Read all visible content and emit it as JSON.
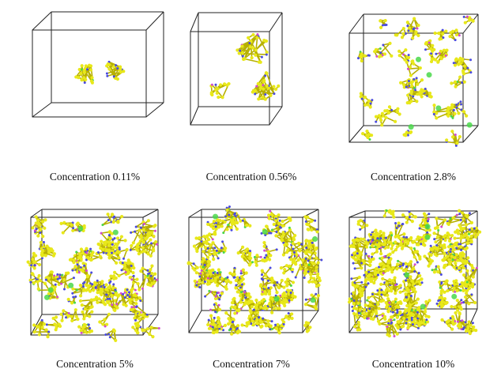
{
  "panels": [
    {
      "caption": "Concentration 0.11%",
      "concentration_percent": 0.11,
      "clusters": 2
    },
    {
      "caption": "Concentration 0.56%",
      "concentration_percent": 0.56,
      "clusters": 3
    },
    {
      "caption": "Concentration 2.8%",
      "concentration_percent": 2.8,
      "clusters": "network"
    },
    {
      "caption": "Concentration 5%",
      "concentration_percent": 5,
      "clusters": "dense"
    },
    {
      "caption": "Concentration 7%",
      "concentration_percent": 7,
      "clusters": "dense"
    },
    {
      "caption": "Concentration 10%",
      "concentration_percent": 10,
      "clusters": "dense"
    }
  ],
  "colors": {
    "box_edge": "#222222",
    "atom_yellow": "#e8e81a",
    "bond_yellow": "#b7b000",
    "atom_blue": "#4a4ae0",
    "atom_magenta": "#d04ad0",
    "atom_green": "#4ad84a"
  }
}
